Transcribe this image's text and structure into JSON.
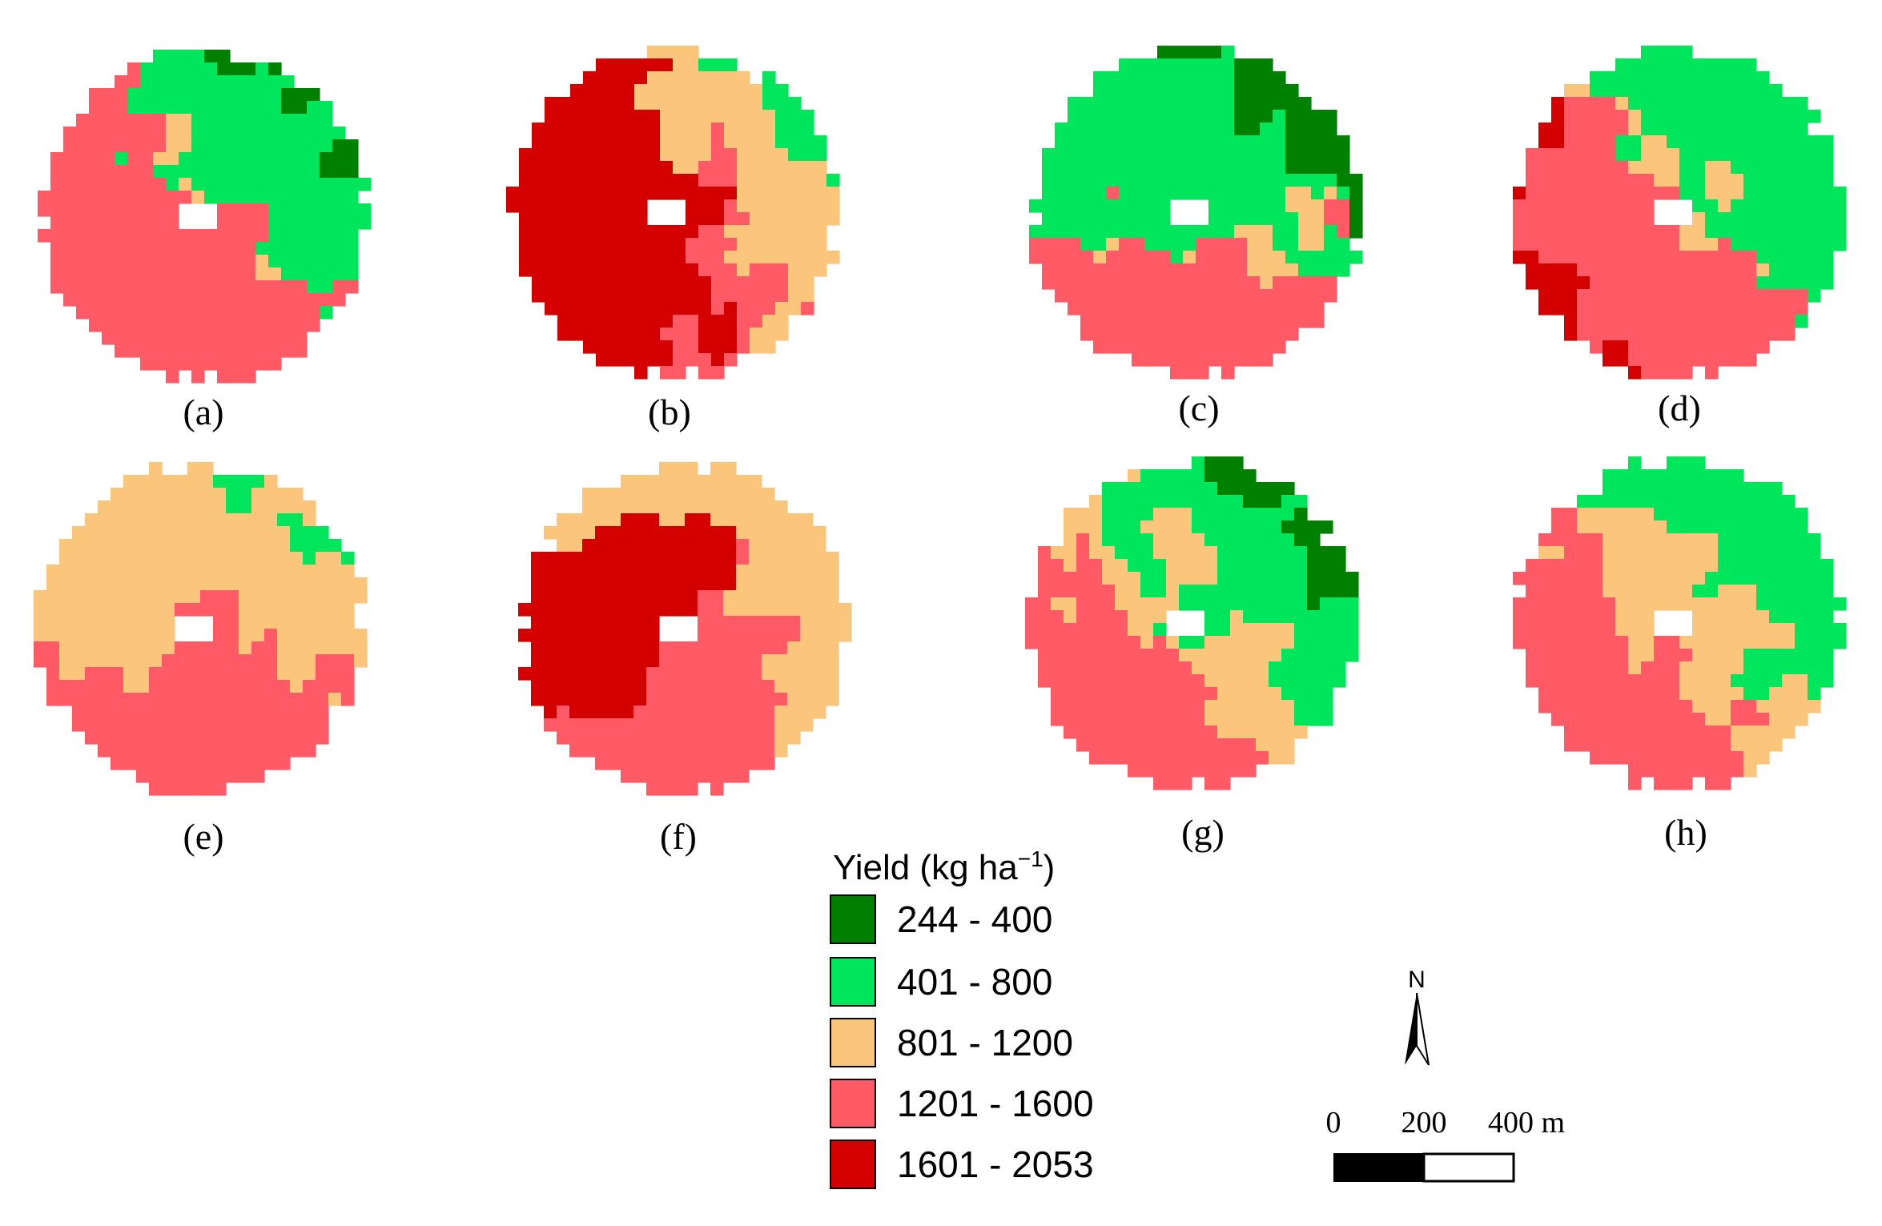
{
  "panels": [
    {
      "id": "a",
      "label": "(a)",
      "base": "801-1200",
      "seed": 3,
      "features": [
        {
          "cls": "401-800",
          "dir": "NE",
          "strength": 0.7
        },
        {
          "cls": "1201-1600",
          "dir": "SW",
          "strength": 0.8
        },
        {
          "cls": "1201-1600",
          "dir": "W",
          "strength": 0.3
        },
        {
          "cls": "244-400",
          "dir": "NE",
          "strength": 0.15
        }
      ]
    },
    {
      "id": "b",
      "label": "(b)",
      "base": "1201-1600",
      "seed": 11,
      "features": [
        {
          "cls": "1601-2053",
          "dir": "W",
          "strength": 0.8
        },
        {
          "cls": "801-1200",
          "dir": "NE",
          "strength": 0.5
        },
        {
          "cls": "801-1200",
          "dir": "E",
          "strength": 0.3
        },
        {
          "cls": "401-800",
          "dir": "NE",
          "strength": 0.12
        }
      ]
    },
    {
      "id": "c",
      "label": "(c)",
      "base": "801-1200",
      "seed": 23,
      "features": [
        {
          "cls": "401-800",
          "dir": "N",
          "strength": 0.8
        },
        {
          "cls": "401-800",
          "dir": "W",
          "strength": 0.35
        },
        {
          "cls": "1201-1600",
          "dir": "S",
          "strength": 0.6
        },
        {
          "cls": "244-400",
          "dir": "NE",
          "strength": 0.25
        }
      ]
    },
    {
      "id": "d",
      "label": "(d)",
      "base": "801-1200",
      "seed": 37,
      "features": [
        {
          "cls": "401-800",
          "dir": "NE",
          "strength": 0.6
        },
        {
          "cls": "401-800",
          "dir": "E",
          "strength": 0.35
        },
        {
          "cls": "1201-1600",
          "dir": "SW",
          "strength": 0.75
        },
        {
          "cls": "1601-2053",
          "dir": "SW",
          "strength": 0.15
        },
        {
          "cls": "1601-2053",
          "dir": "W",
          "strength": 0.1
        }
      ]
    },
    {
      "id": "e",
      "label": "(e)",
      "base": "801-1200",
      "seed": 41,
      "features": [
        {
          "cls": "1201-1600",
          "dir": "S",
          "strength": 0.55
        },
        {
          "cls": "1201-1600",
          "dir": "C",
          "strength": 0.25
        },
        {
          "cls": "401-800",
          "dir": "NE",
          "strength": 0.08
        }
      ]
    },
    {
      "id": "f",
      "label": "(f)",
      "base": "1201-1600",
      "seed": 53,
      "features": [
        {
          "cls": "1601-2053",
          "dir": "NW",
          "strength": 0.75
        },
        {
          "cls": "801-1200",
          "dir": "E",
          "strength": 0.35
        },
        {
          "cls": "801-1200",
          "dir": "N",
          "strength": 0.25
        }
      ]
    },
    {
      "id": "g",
      "label": "(g)",
      "base": "801-1200",
      "seed": 67,
      "features": [
        {
          "cls": "401-800",
          "dir": "NE",
          "strength": 0.6
        },
        {
          "cls": "401-800",
          "dir": "C",
          "strength": 0.2
        },
        {
          "cls": "1201-1600",
          "dir": "SW",
          "strength": 0.55
        },
        {
          "cls": "244-400",
          "dir": "NE",
          "strength": 0.12
        }
      ]
    },
    {
      "id": "h",
      "label": "(h)",
      "base": "801-1200",
      "seed": 79,
      "features": [
        {
          "cls": "401-800",
          "dir": "NE",
          "strength": 0.5
        },
        {
          "cls": "1201-1600",
          "dir": "SW",
          "strength": 0.6
        },
        {
          "cls": "1201-1600",
          "dir": "W",
          "strength": 0.2
        }
      ]
    }
  ],
  "legend": {
    "title_prefix": "Yield (kg ha",
    "title_sup": "−1",
    "title_suffix": ")",
    "classes": [
      {
        "key": "244-400",
        "label": "244 - 400",
        "color": "#008000"
      },
      {
        "key": "401-800",
        "label": "401 - 800",
        "color": "#00e65c"
      },
      {
        "key": "801-1200",
        "label": "801 - 1200",
        "color": "#fbc57b"
      },
      {
        "key": "1201-1600",
        "label": "1201 - 1600",
        "color": "#ff5a66"
      },
      {
        "key": "1601-2053",
        "label": "1601 - 2053",
        "color": "#d40000"
      }
    ]
  },
  "north_arrow": {
    "label": "N"
  },
  "scale_bar": {
    "ticks": [
      "0",
      "200",
      "400 m"
    ]
  }
}
